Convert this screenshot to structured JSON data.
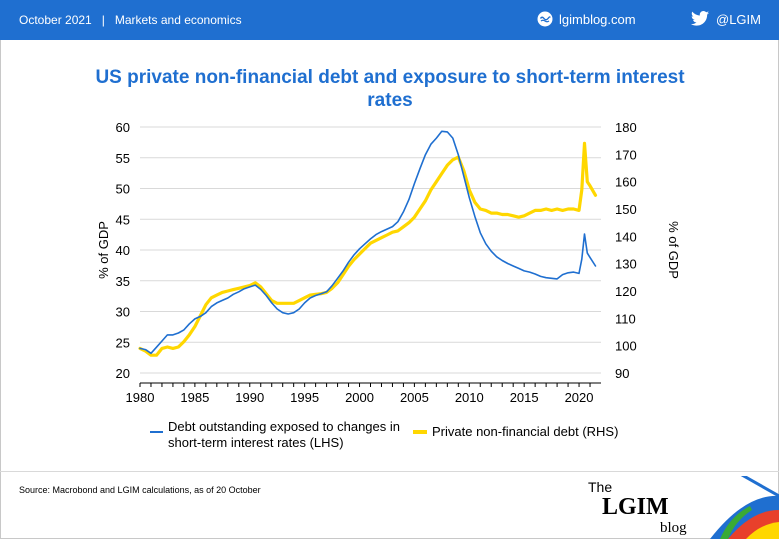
{
  "header": {
    "date": "October 2021",
    "separator": "|",
    "section": "Markets and economics",
    "site": "lgimblog.com",
    "twitter": "@LGIM"
  },
  "chart_data": {
    "type": "line",
    "title": "US private non-financial debt and exposure to short-term interest rates",
    "ylabel": "% of GDP",
    "y2label": "% of GDP",
    "xlim": [
      1980,
      2022
    ],
    "ylim": [
      20,
      60
    ],
    "y2lim": [
      90,
      180
    ],
    "x_ticks": [
      "1980",
      "1985",
      "1990",
      "1995",
      "2000",
      "2005",
      "2010",
      "2015",
      "2020"
    ],
    "y_ticks": [
      "20",
      "25",
      "30",
      "35",
      "40",
      "45",
      "50",
      "55",
      "60"
    ],
    "y2_ticks": [
      "90",
      "100",
      "110",
      "120",
      "130",
      "140",
      "150",
      "160",
      "170",
      "180"
    ],
    "series": [
      {
        "name": "Debt outstanding exposed to changes in short-term interest rates (LHS)",
        "axis": "left",
        "color": "#1f6fd0",
        "x": [
          1980,
          1980.5,
          1981,
          1981.5,
          1982,
          1982.5,
          1983,
          1983.5,
          1984,
          1984.5,
          1985,
          1985.5,
          1986,
          1986.5,
          1987,
          1987.5,
          1988,
          1988.5,
          1989,
          1989.5,
          1990,
          1990.5,
          1991,
          1991.5,
          1992,
          1992.5,
          1993,
          1993.5,
          1994,
          1994.5,
          1995,
          1995.5,
          1996,
          1996.5,
          1997,
          1997.5,
          1998,
          1998.5,
          1999,
          1999.5,
          2000,
          2000.5,
          2001,
          2001.5,
          2002,
          2002.5,
          2003,
          2003.5,
          2004,
          2004.5,
          2005,
          2005.5,
          2006,
          2006.5,
          2007,
          2007.5,
          2008,
          2008.5,
          2009,
          2009.5,
          2010,
          2010.5,
          2011,
          2011.5,
          2012,
          2012.5,
          2013,
          2013.5,
          2014,
          2014.5,
          2015,
          2015.5,
          2016,
          2016.5,
          2017,
          2017.5,
          2018,
          2018.5,
          2019,
          2019.5,
          2020,
          2020.25,
          2020.5,
          2020.75,
          2021,
          2021.5
        ],
        "values": [
          24,
          23.8,
          23.2,
          24.2,
          25.2,
          26.2,
          26.2,
          26.5,
          27.0,
          28.0,
          28.8,
          29.2,
          29.8,
          30.8,
          31.4,
          31.8,
          32.2,
          32.8,
          33.2,
          33.7,
          34.0,
          34.3,
          33.6,
          32.6,
          31.4,
          30.4,
          29.8,
          29.6,
          29.8,
          30.4,
          31.4,
          32.2,
          32.6,
          32.9,
          33.2,
          34.2,
          35.4,
          36.6,
          38.0,
          39.2,
          40.2,
          41.0,
          41.8,
          42.5,
          43.0,
          43.4,
          43.8,
          44.6,
          46.2,
          48.2,
          50.8,
          53.2,
          55.5,
          57.2,
          58.2,
          59.3,
          59.2,
          58.2,
          55.5,
          52.0,
          48.5,
          45.5,
          42.8,
          41.0,
          39.8,
          38.9,
          38.3,
          37.8,
          37.4,
          37.0,
          36.6,
          36.4,
          36.1,
          35.7,
          35.5,
          35.4,
          35.3,
          36.0,
          36.3,
          36.4,
          36.2,
          38.5,
          42.6,
          39.5,
          38.8,
          37.4
        ]
      },
      {
        "name": "Private non-financial debt (RHS)",
        "axis": "right",
        "color": "#ffd700",
        "x": [
          1980,
          1980.5,
          1981,
          1981.5,
          1982,
          1982.5,
          1983,
          1983.5,
          1984,
          1984.5,
          1985,
          1985.5,
          1986,
          1986.5,
          1987,
          1987.5,
          1988,
          1988.5,
          1989,
          1989.5,
          1990,
          1990.5,
          1991,
          1991.5,
          1992,
          1992.5,
          1993,
          1993.5,
          1994,
          1994.5,
          1995,
          1995.5,
          1996,
          1996.5,
          1997,
          1997.5,
          1998,
          1998.5,
          1999,
          1999.5,
          2000,
          2000.5,
          2001,
          2001.5,
          2002,
          2002.5,
          2003,
          2003.5,
          2004,
          2004.5,
          2005,
          2005.5,
          2006,
          2006.5,
          2007,
          2007.5,
          2008,
          2008.5,
          2009,
          2009.5,
          2010,
          2010.5,
          2011,
          2011.5,
          2012,
          2012.5,
          2013,
          2013.5,
          2014,
          2014.5,
          2015,
          2015.5,
          2016,
          2016.5,
          2017,
          2017.5,
          2018,
          2018.5,
          2019,
          2019.5,
          2020,
          2020.25,
          2020.5,
          2020.75,
          2021,
          2021.5
        ],
        "values": [
          99,
          98,
          96.5,
          96.5,
          99,
          99.5,
          99,
          99.5,
          101.5,
          104,
          107,
          111,
          115,
          117.5,
          118.5,
          119.5,
          120,
          120.5,
          121,
          121.5,
          122,
          123,
          121.5,
          119,
          116.5,
          115.5,
          115.5,
          115.5,
          115.5,
          116.5,
          117.5,
          118.5,
          118.8,
          119,
          119.5,
          121,
          123,
          126,
          129,
          131.5,
          133.5,
          135.5,
          137.5,
          138.5,
          139.5,
          140.5,
          141.5,
          142,
          143.5,
          145,
          147,
          150,
          153,
          157,
          160,
          163,
          166,
          168,
          169,
          164,
          157,
          152.5,
          150,
          149.5,
          148.5,
          148.5,
          148,
          148,
          147.5,
          147,
          147.5,
          148.5,
          149.5,
          149.5,
          150,
          149.5,
          150,
          149.5,
          150,
          150,
          149.5,
          157,
          174,
          160,
          158.5,
          155
        ]
      }
    ]
  },
  "footer": {
    "source": "Source: Macrobond and LGIM  calculations, as of 20 October",
    "logo_text": "The LGIM blog"
  }
}
